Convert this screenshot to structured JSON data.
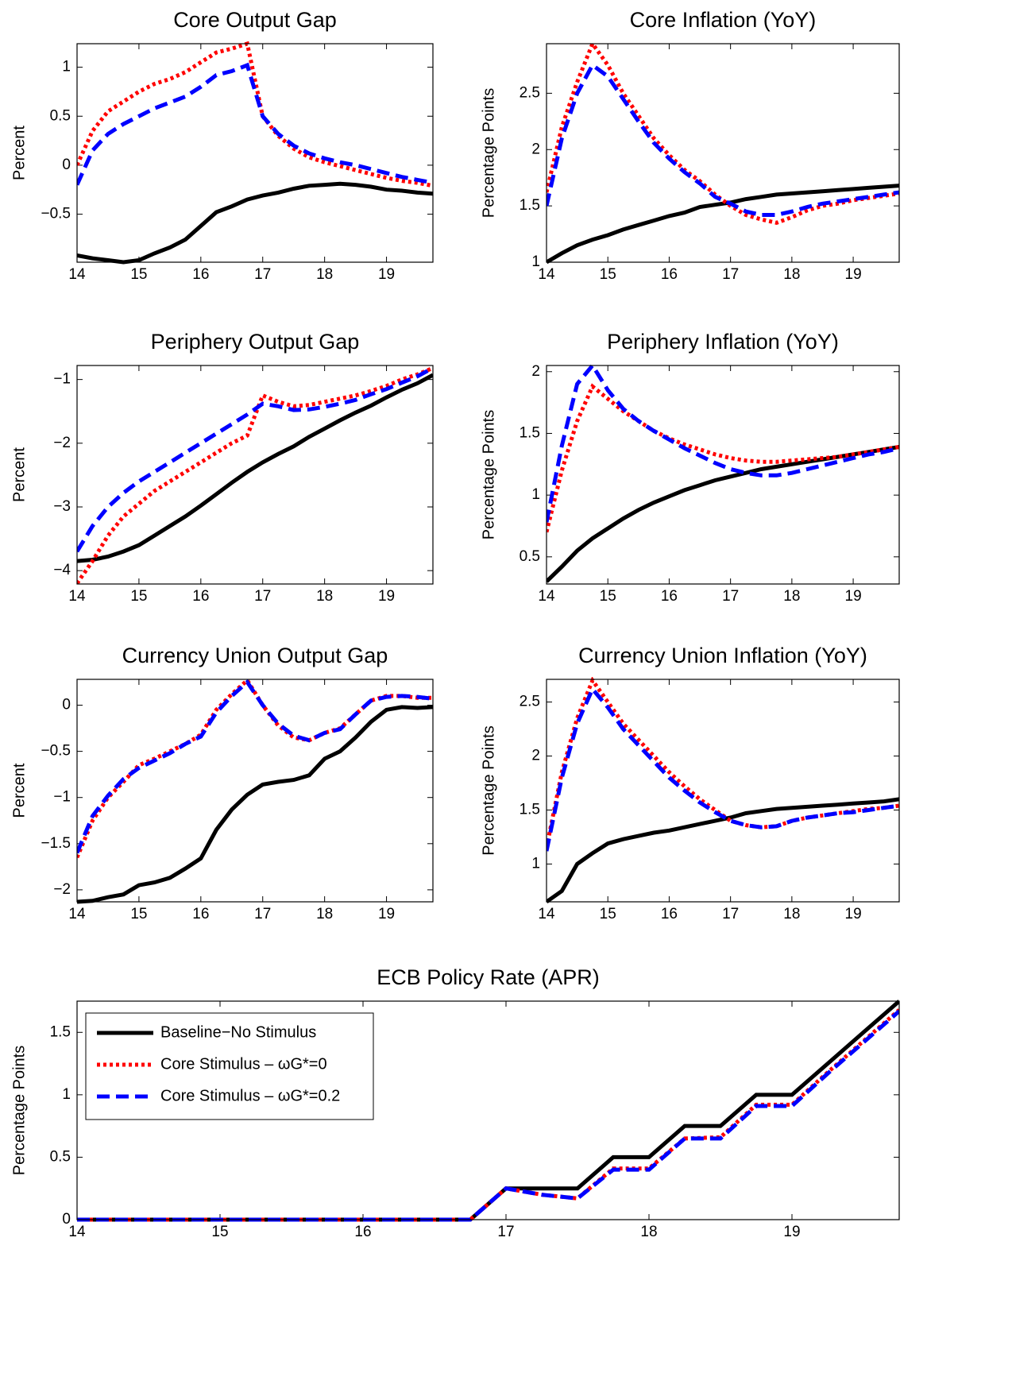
{
  "chart_data": [
    {
      "type": "line",
      "title": "Core Output Gap",
      "y_label": "Percent",
      "x": [
        14,
        14.25,
        14.5,
        14.75,
        15,
        15.25,
        15.5,
        15.75,
        16,
        16.25,
        16.5,
        16.75,
        17,
        17.25,
        17.5,
        17.75,
        18,
        18.25,
        18.5,
        18.75,
        19,
        19.25,
        19.5,
        19.75
      ],
      "xlim": [
        14,
        19.75
      ],
      "xticks": [
        14,
        15,
        16,
        17,
        18,
        19
      ],
      "ylim": [
        -0.99,
        1.24
      ],
      "yticks": [
        {
          "value": -0.5,
          "label": "−0.5"
        },
        0,
        0.5,
        1
      ],
      "series": [
        {
          "color": "#000000",
          "style": "solid",
          "values": [
            -0.92,
            -0.95,
            -0.97,
            -0.99,
            -0.97,
            -0.9,
            -0.84,
            -0.76,
            -0.62,
            -0.48,
            -0.42,
            -0.35,
            -0.31,
            -0.28,
            -0.24,
            -0.21,
            -0.2,
            -0.19,
            -0.2,
            -0.22,
            -0.25,
            -0.26,
            -0.28,
            -0.29
          ]
        },
        {
          "color": "#ff0000",
          "style": "dotted",
          "values": [
            0.0,
            0.35,
            0.55,
            0.65,
            0.75,
            0.83,
            0.88,
            0.95,
            1.05,
            1.15,
            1.19,
            1.24,
            0.5,
            0.3,
            0.17,
            0.08,
            0.03,
            -0.01,
            -0.05,
            -0.09,
            -0.13,
            -0.16,
            -0.18,
            -0.21
          ]
        },
        {
          "color": "#0000ff",
          "style": "dashed",
          "values": [
            -0.2,
            0.15,
            0.32,
            0.42,
            0.5,
            0.58,
            0.64,
            0.7,
            0.8,
            0.92,
            0.96,
            1.02,
            0.5,
            0.32,
            0.2,
            0.12,
            0.07,
            0.03,
            0.0,
            -0.04,
            -0.08,
            -0.12,
            -0.15,
            -0.18
          ]
        }
      ]
    },
    {
      "type": "line",
      "title": "Core Inflation (YoY)",
      "y_label": "Percentage Points",
      "x": [
        14,
        14.25,
        14.5,
        14.75,
        15,
        15.25,
        15.5,
        15.75,
        16,
        16.25,
        16.5,
        16.75,
        17,
        17.25,
        17.5,
        17.75,
        18,
        18.25,
        18.5,
        18.75,
        19,
        19.25,
        19.5,
        19.75
      ],
      "xlim": [
        14,
        19.75
      ],
      "xticks": [
        14,
        15,
        16,
        17,
        18,
        19
      ],
      "ylim": [
        1,
        2.94
      ],
      "yticks": [
        1,
        1.5,
        2,
        2.5
      ],
      "series": [
        {
          "color": "#000000",
          "style": "solid",
          "values": [
            1.0,
            1.08,
            1.15,
            1.2,
            1.24,
            1.29,
            1.33,
            1.37,
            1.41,
            1.44,
            1.49,
            1.51,
            1.53,
            1.56,
            1.58,
            1.6,
            1.61,
            1.62,
            1.63,
            1.64,
            1.65,
            1.66,
            1.67,
            1.68
          ]
        },
        {
          "color": "#ff0000",
          "style": "dotted",
          "values": [
            1.62,
            2.2,
            2.6,
            2.94,
            2.75,
            2.5,
            2.3,
            2.1,
            1.95,
            1.82,
            1.72,
            1.6,
            1.5,
            1.42,
            1.38,
            1.35,
            1.4,
            1.46,
            1.5,
            1.52,
            1.55,
            1.57,
            1.59,
            1.61
          ]
        },
        {
          "color": "#0000ff",
          "style": "dashed",
          "values": [
            1.5,
            2.1,
            2.5,
            2.75,
            2.65,
            2.45,
            2.25,
            2.06,
            1.92,
            1.8,
            1.7,
            1.58,
            1.52,
            1.45,
            1.42,
            1.42,
            1.45,
            1.49,
            1.52,
            1.54,
            1.56,
            1.58,
            1.6,
            1.62
          ]
        }
      ]
    },
    {
      "type": "line",
      "title": "Periphery Output Gap",
      "y_label": "Percent",
      "x": [
        14,
        14.25,
        14.5,
        14.75,
        15,
        15.25,
        15.5,
        15.75,
        16,
        16.25,
        16.5,
        16.75,
        17,
        17.25,
        17.5,
        17.75,
        18,
        18.25,
        18.5,
        18.75,
        19,
        19.25,
        19.5,
        19.75
      ],
      "xlim": [
        14,
        19.75
      ],
      "xticks": [
        14,
        15,
        16,
        17,
        18,
        19
      ],
      "ylim": [
        -4.21,
        -0.78
      ],
      "yticks": [
        {
          "value": -4,
          "label": "−4"
        },
        {
          "value": -3,
          "label": "−3"
        },
        {
          "value": -2,
          "label": "−2"
        },
        {
          "value": -1,
          "label": "−1"
        }
      ],
      "series": [
        {
          "color": "#000000",
          "style": "solid",
          "values": [
            -3.85,
            -3.83,
            -3.78,
            -3.7,
            -3.6,
            -3.45,
            -3.3,
            -3.15,
            -2.98,
            -2.8,
            -2.62,
            -2.45,
            -2.3,
            -2.17,
            -2.05,
            -1.9,
            -1.77,
            -1.64,
            -1.52,
            -1.41,
            -1.28,
            -1.16,
            -1.06,
            -0.93
          ]
        },
        {
          "color": "#ff0000",
          "style": "dotted",
          "values": [
            -4.2,
            -3.85,
            -3.45,
            -3.15,
            -2.95,
            -2.75,
            -2.6,
            -2.45,
            -2.3,
            -2.15,
            -2.0,
            -1.88,
            -1.25,
            -1.35,
            -1.42,
            -1.4,
            -1.35,
            -1.3,
            -1.25,
            -1.18,
            -1.1,
            -1.0,
            -0.92,
            -0.82
          ]
        },
        {
          "color": "#0000ff",
          "style": "dashed",
          "values": [
            -3.7,
            -3.3,
            -3.0,
            -2.78,
            -2.6,
            -2.45,
            -2.3,
            -2.15,
            -2.0,
            -1.85,
            -1.7,
            -1.55,
            -1.38,
            -1.42,
            -1.48,
            -1.47,
            -1.43,
            -1.38,
            -1.32,
            -1.23,
            -1.15,
            -1.05,
            -0.95,
            -0.82
          ]
        }
      ]
    },
    {
      "type": "line",
      "title": "Periphery Inflation (YoY)",
      "y_label": "Percentage Points",
      "x": [
        14,
        14.25,
        14.5,
        14.75,
        15,
        15.25,
        15.5,
        15.75,
        16,
        16.25,
        16.5,
        16.75,
        17,
        17.25,
        17.5,
        17.75,
        18,
        18.25,
        18.5,
        18.75,
        19,
        19.25,
        19.5,
        19.75
      ],
      "xlim": [
        14,
        19.75
      ],
      "xticks": [
        14,
        15,
        16,
        17,
        18,
        19
      ],
      "ylim": [
        0.28,
        2.05
      ],
      "yticks": [
        0.5,
        1,
        1.5,
        2
      ],
      "series": [
        {
          "color": "#000000",
          "style": "solid",
          "values": [
            0.3,
            0.42,
            0.55,
            0.65,
            0.73,
            0.81,
            0.88,
            0.94,
            0.99,
            1.04,
            1.08,
            1.12,
            1.15,
            1.18,
            1.21,
            1.23,
            1.25,
            1.27,
            1.29,
            1.31,
            1.33,
            1.35,
            1.37,
            1.39
          ]
        },
        {
          "color": "#ff0000",
          "style": "dotted",
          "values": [
            0.7,
            1.2,
            1.6,
            1.88,
            1.78,
            1.68,
            1.6,
            1.52,
            1.46,
            1.41,
            1.37,
            1.33,
            1.3,
            1.28,
            1.27,
            1.27,
            1.28,
            1.29,
            1.3,
            1.31,
            1.33,
            1.35,
            1.37,
            1.39
          ]
        },
        {
          "color": "#0000ff",
          "style": "dashed",
          "values": [
            0.78,
            1.4,
            1.9,
            2.05,
            1.85,
            1.7,
            1.6,
            1.52,
            1.45,
            1.38,
            1.32,
            1.26,
            1.21,
            1.18,
            1.16,
            1.16,
            1.18,
            1.21,
            1.24,
            1.27,
            1.3,
            1.33,
            1.35,
            1.38
          ]
        }
      ]
    },
    {
      "type": "line",
      "title": "Currency Union Output Gap",
      "y_label": "Percent",
      "x": [
        14,
        14.25,
        14.5,
        14.75,
        15,
        15.25,
        15.5,
        15.75,
        16,
        16.25,
        16.5,
        16.75,
        17,
        17.25,
        17.5,
        17.75,
        18,
        18.25,
        18.5,
        18.75,
        19,
        19.25,
        19.5,
        19.75
      ],
      "xlim": [
        14,
        19.75
      ],
      "xticks": [
        14,
        15,
        16,
        17,
        18,
        19
      ],
      "ylim": [
        -2.13,
        0.28
      ],
      "yticks": [
        {
          "value": -2,
          "label": "−2"
        },
        {
          "value": -1.5,
          "label": "−1.5"
        },
        {
          "value": -1,
          "label": "−1"
        },
        {
          "value": -0.5,
          "label": "−0.5"
        },
        0
      ],
      "series": [
        {
          "color": "#000000",
          "style": "solid",
          "values": [
            -2.13,
            -2.12,
            -2.08,
            -2.05,
            -1.95,
            -1.92,
            -1.87,
            -1.77,
            -1.66,
            -1.35,
            -1.13,
            -0.97,
            -0.86,
            -0.83,
            -0.81,
            -0.76,
            -0.58,
            -0.5,
            -0.35,
            -0.18,
            -0.05,
            -0.02,
            -0.03,
            -0.02
          ]
        },
        {
          "color": "#ff0000",
          "style": "dotted",
          "values": [
            -1.65,
            -1.25,
            -1.0,
            -0.83,
            -0.65,
            -0.58,
            -0.5,
            -0.42,
            -0.32,
            -0.05,
            0.12,
            0.27,
            0.0,
            -0.22,
            -0.35,
            -0.38,
            -0.3,
            -0.25,
            -0.1,
            0.05,
            0.1,
            0.1,
            0.08,
            0.08
          ]
        },
        {
          "color": "#0000ff",
          "style": "dashed",
          "values": [
            -1.6,
            -1.2,
            -0.98,
            -0.8,
            -0.68,
            -0.6,
            -0.52,
            -0.42,
            -0.34,
            -0.08,
            0.1,
            0.25,
            0.0,
            -0.2,
            -0.33,
            -0.38,
            -0.3,
            -0.26,
            -0.1,
            0.05,
            0.09,
            0.1,
            0.09,
            0.07
          ]
        }
      ]
    },
    {
      "type": "line",
      "title": "Currency Union Inflation (YoY)",
      "y_label": "Percentage Points",
      "x": [
        14,
        14.25,
        14.5,
        14.75,
        15,
        15.25,
        15.5,
        15.75,
        16,
        16.25,
        16.5,
        16.75,
        17,
        17.25,
        17.5,
        17.75,
        18,
        18.25,
        18.5,
        18.75,
        19,
        19.25,
        19.5,
        19.75
      ],
      "xlim": [
        14,
        19.75
      ],
      "xticks": [
        14,
        15,
        16,
        17,
        18,
        19
      ],
      "ylim": [
        0.65,
        2.71
      ],
      "yticks": [
        1,
        1.5,
        2,
        2.5
      ],
      "series": [
        {
          "color": "#000000",
          "style": "solid",
          "values": [
            0.65,
            0.75,
            1.0,
            1.1,
            1.19,
            1.23,
            1.26,
            1.29,
            1.31,
            1.34,
            1.37,
            1.4,
            1.43,
            1.47,
            1.49,
            1.51,
            1.52,
            1.53,
            1.54,
            1.55,
            1.56,
            1.57,
            1.58,
            1.6
          ]
        },
        {
          "color": "#ff0000",
          "style": "dotted",
          "values": [
            1.15,
            1.85,
            2.35,
            2.7,
            2.5,
            2.3,
            2.15,
            2.0,
            1.85,
            1.72,
            1.6,
            1.5,
            1.4,
            1.36,
            1.34,
            1.35,
            1.4,
            1.43,
            1.45,
            1.47,
            1.49,
            1.51,
            1.52,
            1.54
          ]
        },
        {
          "color": "#0000ff",
          "style": "dashed",
          "values": [
            1.12,
            1.8,
            2.3,
            2.62,
            2.45,
            2.25,
            2.1,
            1.95,
            1.8,
            1.68,
            1.57,
            1.48,
            1.4,
            1.36,
            1.34,
            1.35,
            1.4,
            1.43,
            1.45,
            1.47,
            1.48,
            1.5,
            1.52,
            1.54
          ]
        }
      ]
    },
    {
      "type": "line",
      "title": "ECB Policy Rate (APR)",
      "y_label": "Percentage Points",
      "legend": "upper left",
      "x": [
        14,
        14.25,
        14.5,
        14.75,
        15,
        15.25,
        15.5,
        15.75,
        16,
        16.25,
        16.5,
        16.75,
        17,
        17.25,
        17.5,
        17.75,
        18,
        18.25,
        18.5,
        18.75,
        19,
        19.25,
        19.5,
        19.75
      ],
      "xlim": [
        14,
        19.75
      ],
      "xticks": [
        14,
        15,
        16,
        17,
        18,
        19
      ],
      "ylim": [
        0,
        1.75
      ],
      "yticks": [
        0,
        0.5,
        1,
        1.5
      ],
      "series": [
        {
          "name": "Baseline−No Stimulus",
          "color": "#000000",
          "style": "solid",
          "values": [
            0,
            0,
            0,
            0,
            0,
            0,
            0,
            0,
            0,
            0,
            0,
            0,
            0.25,
            0.25,
            0.25,
            0.5,
            0.5,
            0.75,
            0.75,
            1.0,
            1.0,
            1.25,
            1.5,
            1.75
          ]
        },
        {
          "name": "Core Stimulus – ωG*=0",
          "color": "#ff0000",
          "style": "dotted",
          "values": [
            0,
            0,
            0,
            0,
            0,
            0,
            0,
            0,
            0,
            0,
            0,
            0,
            0.25,
            0.2,
            0.17,
            0.41,
            0.41,
            0.65,
            0.66,
            0.92,
            0.92,
            1.18,
            1.43,
            1.68
          ]
        },
        {
          "name": "Core Stimulus – ωG*=0.2",
          "color": "#0000ff",
          "style": "dashed",
          "values": [
            0,
            0,
            0,
            0,
            0,
            0,
            0,
            0,
            0,
            0,
            0,
            0,
            0.25,
            0.2,
            0.17,
            0.4,
            0.4,
            0.65,
            0.65,
            0.91,
            0.91,
            1.17,
            1.42,
            1.67
          ]
        }
      ]
    }
  ]
}
